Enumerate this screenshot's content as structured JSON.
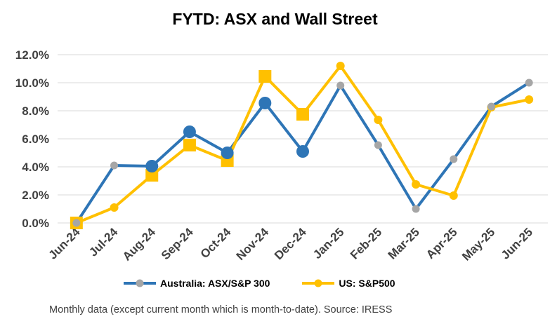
{
  "chart_data": {
    "type": "line",
    "title": "FYTD: ASX and Wall Street",
    "categories": [
      "Jun-24",
      "Jul-24",
      "Aug-24",
      "Sep-24",
      "Oct-24",
      "Nov-24",
      "Dec-24",
      "Jan-25",
      "Feb-25",
      "Mar-25",
      "Apr-25",
      "May-25",
      "Jun-25"
    ],
    "ylim": [
      0,
      12
    ],
    "yticks": [
      "0.0%",
      "2.0%",
      "4.0%",
      "6.0%",
      "8.0%",
      "10.0%",
      "12.0%"
    ],
    "series": [
      {
        "name": "Australia: ASX/S&P 300",
        "color": "#2e75b6",
        "values": [
          0.0,
          4.1,
          4.05,
          6.5,
          5.0,
          8.55,
          5.1,
          9.8,
          5.55,
          1.0,
          4.55,
          8.3,
          10.0
        ]
      },
      {
        "name": "US: S&P500",
        "color": "#ffc000",
        "values": [
          0.0,
          1.1,
          3.4,
          5.55,
          4.45,
          10.45,
          7.75,
          11.2,
          7.35,
          2.75,
          1.95,
          8.25,
          8.8
        ]
      }
    ],
    "markers": {
      "large_australia": [
        2,
        3,
        4,
        5,
        6
      ],
      "large_us": [
        0,
        2,
        3,
        4,
        5,
        6
      ],
      "gray": "#a6a6a6"
    },
    "grid": true,
    "legend": "bottom"
  },
  "legend": {
    "australia_label": "Australia: ASX/S&P 300",
    "us_label": "US: S&P500"
  },
  "footnote": "Monthly data (except current month which is month-to-date).  Source: IRESS"
}
